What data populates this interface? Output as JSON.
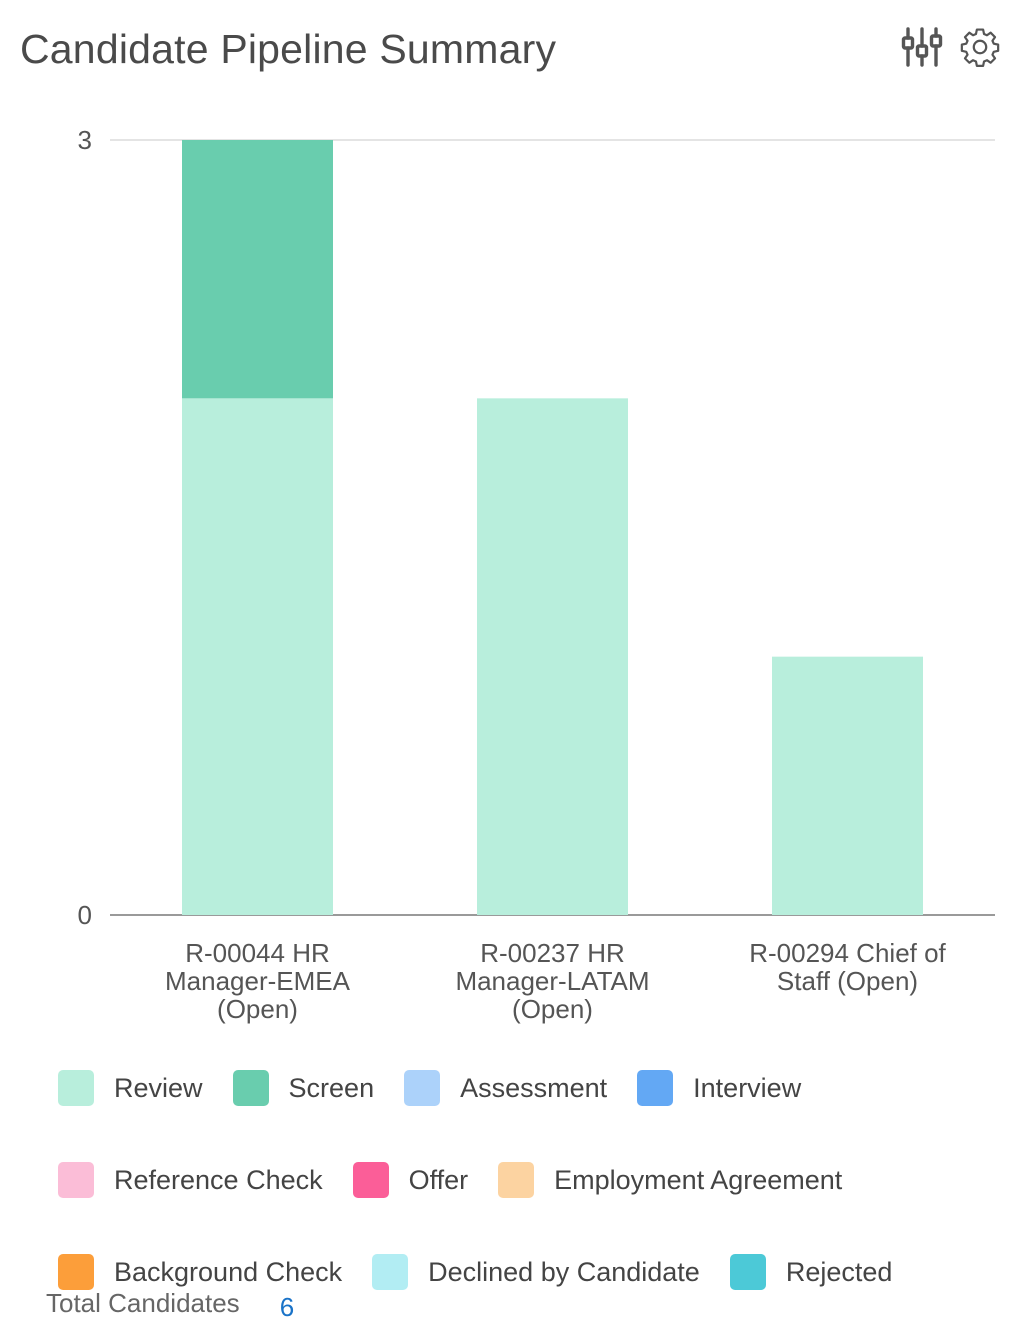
{
  "header": {
    "title": "Candidate Pipeline Summary",
    "icons": [
      "filter-sliders-icon",
      "gear-icon"
    ]
  },
  "chart_data": {
    "type": "bar",
    "stacked": true,
    "title": "",
    "xlabel": "",
    "ylabel": "",
    "ylim": [
      0,
      3
    ],
    "yticks": [
      "0",
      "3"
    ],
    "grid": true,
    "legend_position": "bottom",
    "categories": [
      "R-00044 HR Manager-EMEA (Open)",
      "R-00237 HR Manager-LATAM (Open)",
      "R-00294 Chief of Staff (Open)"
    ],
    "category_label_lines": [
      [
        "R-00044 HR",
        "Manager-EMEA",
        "(Open)"
      ],
      [
        "R-00237 HR",
        "Manager-LATAM",
        "(Open)"
      ],
      [
        "R-00294 Chief of",
        "Staff (Open)"
      ]
    ],
    "series": [
      {
        "name": "Review",
        "color": "#b8eedc",
        "values": [
          2,
          2,
          1
        ]
      },
      {
        "name": "Screen",
        "color": "#69cdae",
        "values": [
          1,
          0,
          0
        ]
      },
      {
        "name": "Assessment",
        "color": "#acd2fa",
        "values": [
          0,
          0,
          0
        ]
      },
      {
        "name": "Interview",
        "color": "#63a8f4",
        "values": [
          0,
          0,
          0
        ]
      },
      {
        "name": "Reference Check",
        "color": "#fbbdd7",
        "values": [
          0,
          0,
          0
        ]
      },
      {
        "name": "Offer",
        "color": "#fb5e98",
        "values": [
          0,
          0,
          0
        ]
      },
      {
        "name": "Employment Agreement",
        "color": "#fcd3a1",
        "values": [
          0,
          0,
          0
        ]
      },
      {
        "name": "Background Check",
        "color": "#fc9e3a",
        "values": [
          0,
          0,
          0
        ]
      },
      {
        "name": "Declined by Candidate",
        "color": "#b2edf3",
        "values": [
          0,
          0,
          0
        ]
      },
      {
        "name": "Rejected",
        "color": "#4cc9d7",
        "values": [
          0,
          0,
          0
        ]
      }
    ]
  },
  "footer": {
    "total_label": "Total Candidates",
    "total_value": "6"
  }
}
